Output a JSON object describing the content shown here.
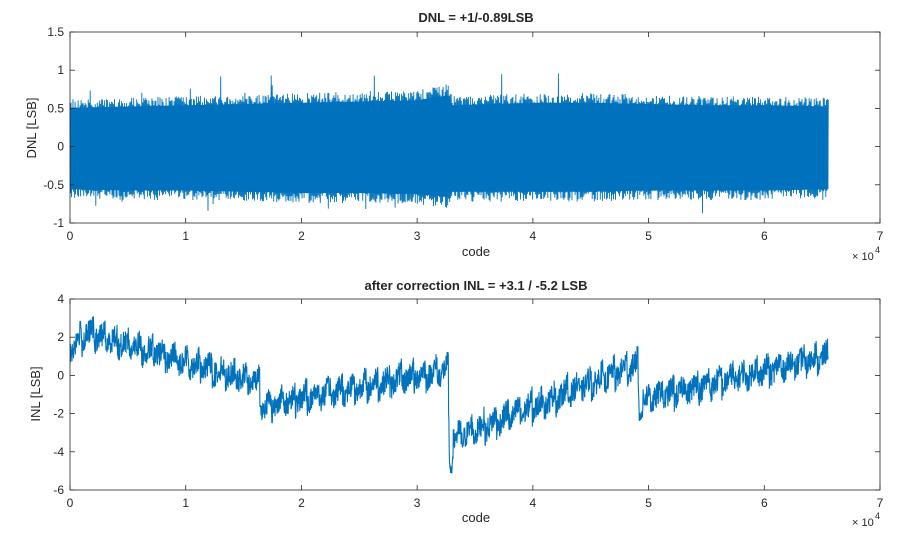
{
  "colors": {
    "series": "#0072BD",
    "axis": "#262626",
    "background": "#ffffff"
  },
  "chart_data": [
    {
      "type": "line",
      "title": "DNL = +1/-0.89LSB",
      "xlabel": "code",
      "ylabel": "DNL [LSB]",
      "xlim": [
        0,
        70000
      ],
      "ylim": [
        -1,
        1.5
      ],
      "x_ticks": [
        "0",
        "1",
        "2",
        "3",
        "4",
        "5",
        "6",
        "7"
      ],
      "y_ticks": [
        "-1",
        "-0.5",
        "0",
        "0.5",
        "1",
        "1.5"
      ],
      "x_multiplier": "× 10",
      "x_multiplier_exp": "4",
      "grid": false,
      "series": [
        {
          "x_range": [
            0,
            65535
          ],
          "envelope_x": [
            0,
            5000,
            10000,
            15000,
            20000,
            25000,
            30000,
            32700,
            33000,
            40000,
            45000,
            50000,
            55000,
            60000,
            65535
          ],
          "envelope_upper": [
            0.62,
            0.64,
            0.66,
            0.68,
            0.7,
            0.72,
            0.74,
            0.82,
            0.66,
            0.7,
            0.7,
            0.68,
            0.66,
            0.66,
            0.64
          ],
          "envelope_lower": [
            -0.68,
            -0.7,
            -0.7,
            -0.72,
            -0.74,
            -0.74,
            -0.76,
            -0.8,
            -0.72,
            -0.72,
            -0.72,
            -0.7,
            -0.7,
            -0.7,
            -0.68
          ],
          "max": 1.0,
          "min": -0.89
        }
      ]
    },
    {
      "type": "line",
      "title": "after correction INL = +3.1 / -5.2 LSB",
      "xlabel": "code",
      "ylabel": "INL [LSB]",
      "xlim": [
        0,
        70000
      ],
      "ylim": [
        -6,
        4
      ],
      "x_ticks": [
        "0",
        "1",
        "2",
        "3",
        "4",
        "5",
        "6",
        "7"
      ],
      "y_ticks": [
        "-6",
        "-4",
        "-2",
        "0",
        "2",
        "4"
      ],
      "x_multiplier": "× 10",
      "x_multiplier_exp": "4",
      "grid": false,
      "series": [
        {
          "x_range": [
            0,
            65535
          ],
          "trend_x": [
            0,
            1500,
            16384,
            16500,
            32700,
            32800,
            49100,
            49200,
            65535
          ],
          "trend_y": [
            1.5,
            2.2,
            -0.4,
            -1.6,
            0.3,
            -3.4,
            0.6,
            -1.3,
            1.0
          ],
          "max": 3.1,
          "min": -5.2
        }
      ]
    }
  ]
}
